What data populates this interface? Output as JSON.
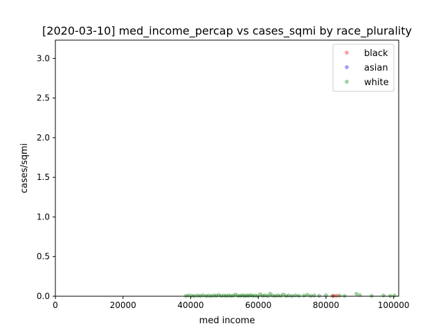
{
  "chart_data": {
    "type": "scatter",
    "title": "[2020-03-10] med_income_percap vs cases_sqmi by race_plurality",
    "xlabel": "med income",
    "ylabel": "cases/sqmi",
    "xlim": [
      0,
      101500
    ],
    "ylim": [
      0,
      3.23
    ],
    "xticks": [
      {
        "value": 0,
        "label": "0"
      },
      {
        "value": 20000,
        "label": "20000"
      },
      {
        "value": 40000,
        "label": "40000"
      },
      {
        "value": 60000,
        "label": "60000"
      },
      {
        "value": 80000,
        "label": "80000"
      },
      {
        "value": 100000,
        "label": "100000"
      }
    ],
    "yticks": [
      {
        "value": 0.0,
        "label": "0.0"
      },
      {
        "value": 0.5,
        "label": "0.5"
      },
      {
        "value": 1.0,
        "label": "1.0"
      },
      {
        "value": 1.5,
        "label": "1.5"
      },
      {
        "value": 2.0,
        "label": "2.0"
      },
      {
        "value": 2.5,
        "label": "2.5"
      },
      {
        "value": 3.0,
        "label": "3.0"
      }
    ],
    "grid": false,
    "legend_position": "top-right",
    "series": [
      {
        "name": "black",
        "color": "#ff0000",
        "points": [
          [
            82200,
            0.004
          ],
          [
            83100,
            0.006
          ]
        ]
      },
      {
        "name": "asian",
        "color": "#0000ff",
        "points": []
      },
      {
        "name": "white",
        "color": "#008000",
        "points": [
          [
            38600,
            0.004
          ],
          [
            39400,
            0.01
          ],
          [
            40300,
            0.006
          ],
          [
            41100,
            0.003
          ],
          [
            42000,
            0.008
          ],
          [
            42800,
            0.005
          ],
          [
            43600,
            0.012
          ],
          [
            44500,
            0.004
          ],
          [
            45300,
            0.007
          ],
          [
            46100,
            0.003
          ],
          [
            46900,
            0.01
          ],
          [
            47600,
            0.006
          ],
          [
            48300,
            0.015
          ],
          [
            49000,
            0.004
          ],
          [
            49800,
            0.009
          ],
          [
            50500,
            0.005
          ],
          [
            51200,
            0.011
          ],
          [
            51900,
            0.004
          ],
          [
            52600,
            0.008
          ],
          [
            53300,
            0.02
          ],
          [
            54000,
            0.006
          ],
          [
            54700,
            0.005
          ],
          [
            55300,
            0.012
          ],
          [
            55900,
            0.004
          ],
          [
            56500,
            0.009
          ],
          [
            57100,
            0.006
          ],
          [
            57700,
            0.014
          ],
          [
            58300,
            0.005
          ],
          [
            59000,
            0.008
          ],
          [
            59800,
            0.004
          ],
          [
            60600,
            0.025
          ],
          [
            61300,
            0.006
          ],
          [
            62000,
            0.011
          ],
          [
            62800,
            0.005
          ],
          [
            63500,
            0.03
          ],
          [
            64200,
            0.008
          ],
          [
            65000,
            0.004
          ],
          [
            65800,
            0.01
          ],
          [
            66600,
            0.006
          ],
          [
            67400,
            0.022
          ],
          [
            68200,
            0.005
          ],
          [
            69000,
            0.009
          ],
          [
            70000,
            0.004
          ],
          [
            71000,
            0.012
          ],
          [
            72000,
            0.006
          ],
          [
            73500,
            0.008
          ],
          [
            74500,
            0.018
          ],
          [
            75500,
            0.005
          ],
          [
            76500,
            0.01
          ],
          [
            78000,
            0.006
          ],
          [
            80000,
            0.012
          ],
          [
            82000,
            0.004
          ],
          [
            84000,
            0.008
          ],
          [
            85500,
            0.005
          ],
          [
            89000,
            0.03
          ],
          [
            90000,
            0.015
          ],
          [
            93500,
            0.005
          ],
          [
            97000,
            0.01
          ],
          [
            99000,
            0.004
          ],
          [
            100200,
            0.008
          ]
        ]
      }
    ]
  }
}
